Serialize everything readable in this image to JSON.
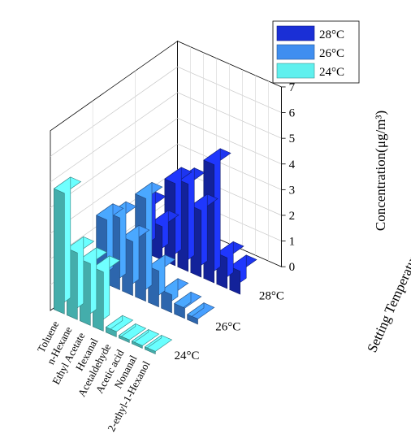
{
  "chart_data": {
    "type": "bar",
    "variant": "3d-bar",
    "categories": [
      "Toluene",
      "n-Hexane",
      "Ethyl Acetate",
      "Hexanal",
      "Acetaldehyde",
      "Acetic acid",
      "Nonanal",
      "2-ethyl-1-Hexanol"
    ],
    "depth_categories": [
      "24°C",
      "26°C",
      "28°C"
    ],
    "series": [
      {
        "name": "28°C",
        "color": "#1a2fd6",
        "values": [
          1.8,
          1.3,
          3.2,
          3.4,
          2.6,
          4.6,
          1.2,
          0.9
        ]
      },
      {
        "name": "26°C",
        "color": "#3f8ef0",
        "values": [
          2.5,
          2.8,
          2.1,
          4.0,
          1.4,
          0.7,
          0.4,
          0.2
        ]
      },
      {
        "name": "24°C",
        "color": "#5ff0ee",
        "values": [
          4.7,
          2.6,
          2.4,
          2.3,
          0.2,
          0.1,
          0.1,
          0.1
        ]
      }
    ],
    "zlabel": "Concentration(μg/m³)",
    "zlim": [
      0,
      7
    ],
    "zticks": [
      "0",
      "1",
      "2",
      "3",
      "4",
      "5",
      "6",
      "7"
    ],
    "ylabel": "Setting Temperature",
    "xlabel": "",
    "grid": true,
    "legend_position": "top-right"
  }
}
